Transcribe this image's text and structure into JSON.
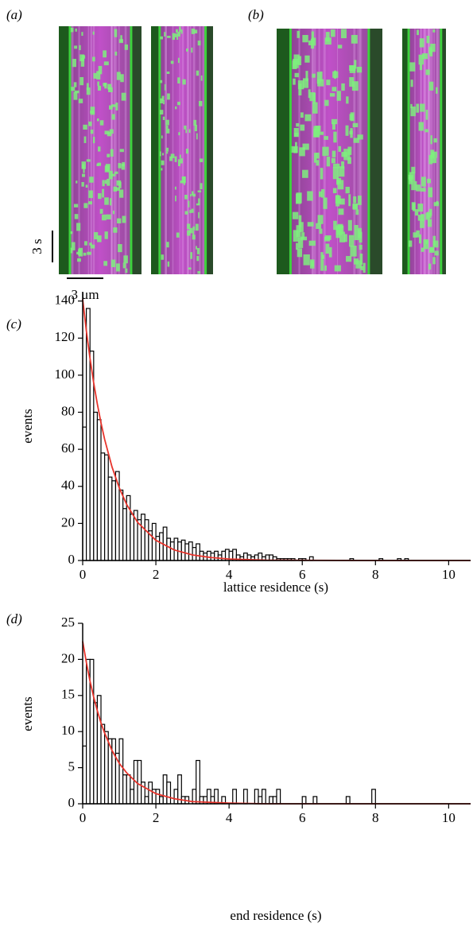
{
  "panels": {
    "a": "(a)",
    "b": "(b)",
    "time_scale": "3 s",
    "length_scale": "3 μm"
  },
  "chart_data": [
    {
      "type": "histogram",
      "label": "(c)",
      "y_label": "events",
      "x_label": "lattice residence (s)",
      "color": "#ffffff",
      "edge_color": "#000000",
      "bins": [
        0,
        0.1,
        0.2,
        0.3,
        0.4,
        0.5,
        0.6,
        0.7,
        0.8,
        0.9,
        1,
        1.1,
        1.2,
        1.3,
        1.4,
        1.5,
        1.6,
        1.7,
        1.8,
        1.9,
        2,
        2.1,
        2.2,
        2.3,
        2.4,
        2.5,
        2.6,
        2.7,
        2.8,
        2.9,
        3,
        3.1,
        3.2,
        3.3,
        3.4,
        3.5,
        3.6,
        3.7,
        3.8,
        3.9,
        4,
        4.1,
        4.2,
        4.3,
        4.4,
        4.5,
        4.6,
        4.7,
        4.8,
        4.9,
        5,
        5.1,
        5.2,
        5.3,
        5.4,
        5.5,
        5.6,
        5.7,
        5.8,
        5.9,
        6,
        6.1,
        6.2,
        6.3,
        6.4,
        6.5,
        6.6,
        6.7,
        6.8,
        6.9,
        7,
        7.1,
        7.2,
        7.3,
        7.4,
        7.5,
        7.6,
        7.7,
        7.8,
        7.9,
        8,
        8.1,
        8.2,
        8.3,
        8.4,
        8.5,
        8.6,
        8.7,
        8.8,
        8.9,
        9
      ],
      "values": [
        72,
        136,
        113,
        80,
        76,
        58,
        57,
        45,
        43,
        48,
        38,
        28,
        35,
        25,
        27,
        22,
        25,
        22,
        16,
        20,
        13,
        15,
        18,
        12,
        10,
        12,
        10,
        11,
        9,
        10,
        7,
        9,
        5,
        4,
        5,
        4,
        5,
        3,
        5,
        6,
        5,
        6,
        3,
        2,
        4,
        3,
        2,
        3,
        4,
        2,
        3,
        3,
        2,
        1,
        1,
        1,
        1,
        1,
        0,
        1,
        1,
        0,
        2,
        0,
        0,
        0,
        0,
        0,
        0,
        0,
        0,
        0,
        0,
        1,
        0,
        0,
        0,
        0,
        0,
        0,
        0,
        1,
        0,
        0,
        0,
        0,
        1,
        0,
        1,
        0
      ],
      "fit": {
        "color": "#e8342c",
        "x": [
          0,
          0.1,
          0.2,
          0.3,
          0.4,
          0.5,
          0.6,
          0.8,
          1,
          1.2,
          1.5,
          2,
          2.5,
          3,
          3.5,
          4,
          5,
          6,
          8,
          10.6
        ],
        "values": [
          141,
          124,
          109.1,
          96,
          84.5,
          74.3,
          65.4,
          50.6,
          39.2,
          30.3,
          20.6,
          10.9,
          5.7,
          3,
          1.6,
          0.8,
          0.2,
          0.1,
          0,
          0
        ]
      },
      "xlim": [
        0,
        10.6
      ],
      "ylim": [
        0,
        145
      ],
      "xticks": [
        0,
        2,
        4,
        6,
        8,
        10
      ],
      "yticks": [
        0,
        20,
        40,
        60,
        80,
        100,
        120,
        140
      ]
    },
    {
      "type": "histogram",
      "label": "(d)",
      "y_label": "events",
      "x_label": "end residence (s)",
      "color": "#ffffff",
      "edge_color": "#000000",
      "bins": [
        0,
        0.1,
        0.2,
        0.3,
        0.4,
        0.5,
        0.6,
        0.7,
        0.8,
        0.9,
        1,
        1.1,
        1.2,
        1.3,
        1.4,
        1.5,
        1.6,
        1.7,
        1.8,
        1.9,
        2,
        2.1,
        2.2,
        2.3,
        2.4,
        2.5,
        2.6,
        2.7,
        2.8,
        2.9,
        3,
        3.1,
        3.2,
        3.3,
        3.4,
        3.5,
        3.6,
        3.7,
        3.8,
        3.9,
        4,
        4.1,
        4.2,
        4.3,
        4.4,
        4.5,
        4.6,
        4.7,
        4.8,
        4.9,
        5,
        5.1,
        5.2,
        5.3,
        5.4,
        5.5,
        5.6,
        5.7,
        5.8,
        5.9,
        6,
        6.1,
        6.2,
        6.3,
        6.4,
        6.5,
        6.6,
        6.7,
        6.8,
        6.9,
        7,
        7.1,
        7.2,
        7.3,
        7.4,
        7.5,
        7.6,
        7.7,
        7.8,
        7.9,
        8
      ],
      "values": [
        8,
        20,
        20,
        14,
        15,
        11,
        10,
        9,
        9,
        7,
        9,
        4,
        4,
        2,
        6,
        6,
        3,
        1,
        3,
        2,
        2,
        1,
        4,
        3,
        0,
        2,
        4,
        1,
        1,
        0,
        2,
        6,
        1,
        1,
        2,
        1,
        2,
        0,
        1,
        0,
        0,
        2,
        0,
        0,
        2,
        0,
        0,
        2,
        1,
        2,
        0,
        1,
        1,
        2,
        0,
        0,
        0,
        0,
        0,
        0,
        1,
        0,
        0,
        1,
        0,
        0,
        0,
        0,
        0,
        0,
        0,
        0,
        1,
        0,
        0,
        0,
        0,
        0,
        0,
        2
      ],
      "fit": {
        "color": "#e8342c",
        "x": [
          0,
          0.1,
          0.2,
          0.3,
          0.4,
          0.5,
          0.6,
          0.8,
          1,
          1.2,
          1.5,
          2,
          2.5,
          3,
          4,
          5,
          10.6
        ],
        "values": [
          22.5,
          19.6,
          17,
          14.8,
          12.9,
          11.2,
          9.8,
          7.4,
          5.6,
          4.3,
          2.8,
          1.4,
          0.7,
          0.3,
          0.1,
          0,
          0
        ]
      },
      "xlim": [
        0,
        10.6
      ],
      "ylim": [
        0,
        25
      ],
      "xticks": [
        0,
        2,
        4,
        6,
        8,
        10
      ],
      "yticks": [
        0,
        5,
        10,
        15,
        20,
        25
      ]
    }
  ]
}
